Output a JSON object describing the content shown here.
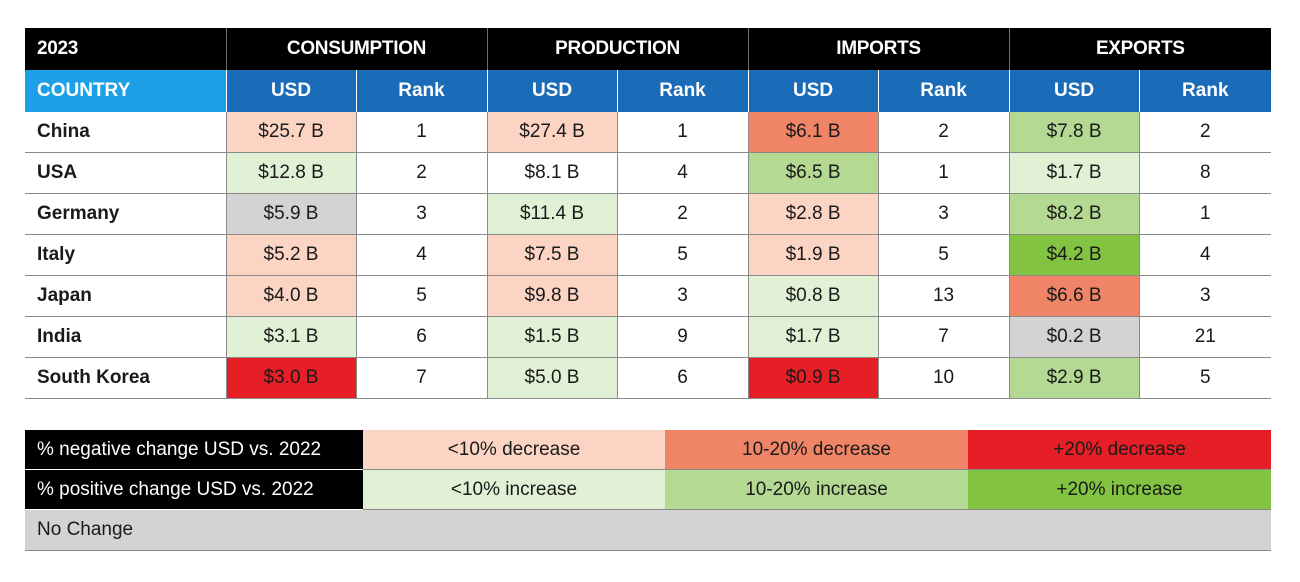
{
  "colors": {
    "neg_small": "#fbd4c4",
    "neg_mid": "#f08466",
    "neg_big": "#e61e25",
    "pos_small": "#e1f1d6",
    "pos_mid": "#b3d993",
    "pos_big": "#82c341",
    "no_change": "#d3d3d3",
    "none": "#ffffff"
  },
  "chart_data": {
    "type": "table",
    "year_label": "2023",
    "groups": [
      "CONSUMPTION",
      "PRODUCTION",
      "IMPORTS",
      "EXPORTS"
    ],
    "country_header": "COUNTRY",
    "sub_headers": [
      "USD",
      "Rank"
    ],
    "rows": [
      {
        "country": "China",
        "cells": [
          {
            "usd": "$25.7 B",
            "rank": "1",
            "change": "neg_small"
          },
          {
            "usd": "$27.4 B",
            "rank": "1",
            "change": "neg_small"
          },
          {
            "usd": "$6.1 B",
            "rank": "2",
            "change": "neg_mid"
          },
          {
            "usd": "$7.8 B",
            "rank": "2",
            "change": "pos_mid"
          }
        ]
      },
      {
        "country": "USA",
        "cells": [
          {
            "usd": "$12.8 B",
            "rank": "2",
            "change": "pos_small"
          },
          {
            "usd": "$8.1 B",
            "rank": "4",
            "change": "none"
          },
          {
            "usd": "$6.5 B",
            "rank": "1",
            "change": "pos_mid"
          },
          {
            "usd": "$1.7 B",
            "rank": "8",
            "change": "pos_small"
          }
        ]
      },
      {
        "country": "Germany",
        "cells": [
          {
            "usd": "$5.9 B",
            "rank": "3",
            "change": "no_change"
          },
          {
            "usd": "$11.4 B",
            "rank": "2",
            "change": "pos_small"
          },
          {
            "usd": "$2.8 B",
            "rank": "3",
            "change": "neg_small"
          },
          {
            "usd": "$8.2 B",
            "rank": "1",
            "change": "pos_mid"
          }
        ]
      },
      {
        "country": "Italy",
        "cells": [
          {
            "usd": "$5.2 B",
            "rank": "4",
            "change": "neg_small"
          },
          {
            "usd": "$7.5 B",
            "rank": "5",
            "change": "neg_small"
          },
          {
            "usd": "$1.9 B",
            "rank": "5",
            "change": "neg_small"
          },
          {
            "usd": "$4.2 B",
            "rank": "4",
            "change": "pos_big"
          }
        ]
      },
      {
        "country": "Japan",
        "cells": [
          {
            "usd": "$4.0 B",
            "rank": "5",
            "change": "neg_small"
          },
          {
            "usd": "$9.8 B",
            "rank": "3",
            "change": "neg_small"
          },
          {
            "usd": "$0.8 B",
            "rank": "13",
            "change": "pos_small"
          },
          {
            "usd": "$6.6 B",
            "rank": "3",
            "change": "neg_mid"
          }
        ]
      },
      {
        "country": "India",
        "cells": [
          {
            "usd": "$3.1 B",
            "rank": "6",
            "change": "pos_small"
          },
          {
            "usd": "$1.5 B",
            "rank": "9",
            "change": "pos_small"
          },
          {
            "usd": "$1.7 B",
            "rank": "7",
            "change": "pos_small"
          },
          {
            "usd": "$0.2 B",
            "rank": "21",
            "change": "no_change"
          }
        ]
      },
      {
        "country": "South Korea",
        "cells": [
          {
            "usd": "$3.0 B",
            "rank": "7",
            "change": "neg_big"
          },
          {
            "usd": "$5.0 B",
            "rank": "6",
            "change": "pos_small"
          },
          {
            "usd": "$0.9 B",
            "rank": "10",
            "change": "neg_big"
          },
          {
            "usd": "$2.9 B",
            "rank": "5",
            "change": "pos_mid"
          }
        ]
      }
    ]
  },
  "legend": {
    "negative_label": "% negative change USD vs. 2022",
    "positive_label": "% positive change USD vs. 2022",
    "negative": [
      {
        "label": "<10% decrease",
        "change": "neg_small"
      },
      {
        "label": "10-20% decrease",
        "change": "neg_mid"
      },
      {
        "label": "+20% decrease",
        "change": "neg_big"
      }
    ],
    "positive": [
      {
        "label": "<10% increase",
        "change": "pos_small"
      },
      {
        "label": "10-20% increase",
        "change": "pos_mid"
      },
      {
        "label": "+20% increase",
        "change": "pos_big"
      }
    ],
    "no_change_label": "No Change"
  }
}
